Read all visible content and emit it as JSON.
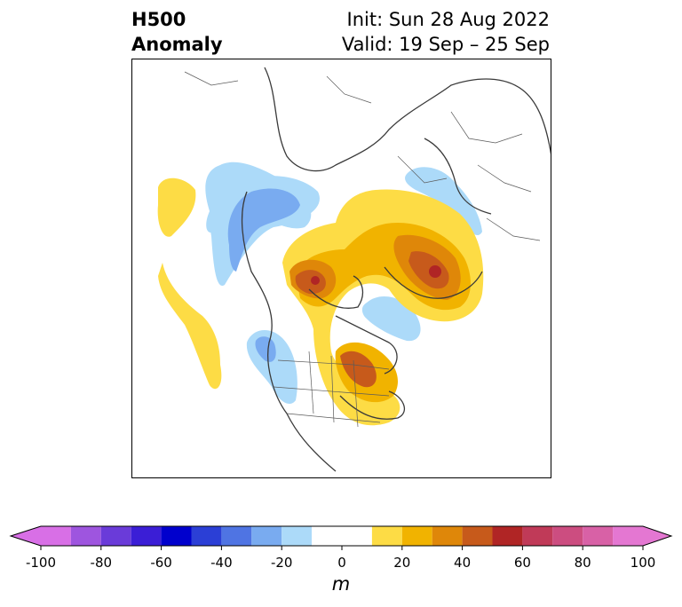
{
  "header": {
    "variable": "H500",
    "kind": "Anomaly",
    "init": "Init: Sun 28 Aug 2022",
    "valid": "Valid: 19 Sep – 25 Sep"
  },
  "map": {
    "region": "Northern Hemisphere polar projection",
    "field": "500 hPa geopotential height anomaly"
  },
  "colorbar": {
    "unit": "m",
    "levels": [
      -100,
      -90,
      -80,
      -70,
      -60,
      -50,
      -40,
      -30,
      -20,
      -10,
      10,
      20,
      30,
      40,
      50,
      60,
      70,
      80,
      90,
      100
    ],
    "tick_labels": [
      "-100",
      "-80",
      "-60",
      "-40",
      "-20",
      "0",
      "20",
      "40",
      "60",
      "80",
      "100"
    ],
    "colors": [
      "#d86fe6",
      "#9e55df",
      "#6a3bd9",
      "#3b1ed6",
      "#0000cd",
      "#2b3fd6",
      "#4f74e3",
      "#79abf0",
      "#acdaf9",
      "#ffffff",
      "#fddc45",
      "#f1b300",
      "#df8709",
      "#c75a1b",
      "#b02525",
      "#c03a58",
      "#cc4d80",
      "#d861a6",
      "#e477d2"
    ],
    "extend": "both"
  }
}
